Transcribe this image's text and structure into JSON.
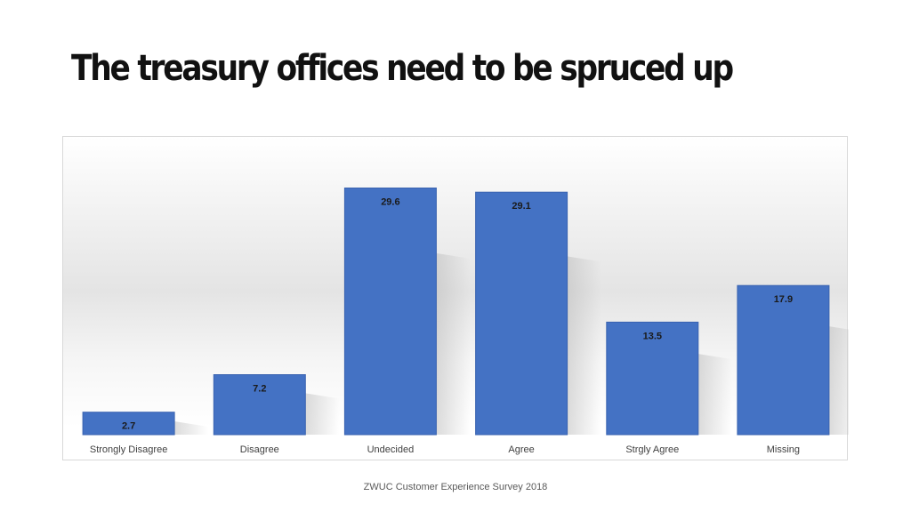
{
  "title": "The treasury offices need to be spruced up",
  "footer": "ZWUC Customer Experience Survey 2018",
  "chart_data": {
    "type": "bar",
    "categories": [
      "Strongly Disagree",
      "Disagree",
      "Undecided",
      "Agree",
      "Strgly Agree",
      "Missing"
    ],
    "values": [
      2.7,
      7.2,
      29.6,
      29.1,
      13.5,
      17.9
    ],
    "data_labels": [
      "2.7",
      "7.2",
      "29.6",
      "29.1",
      "13.5",
      "17.9"
    ],
    "ylim": [
      0,
      32
    ],
    "grid": false,
    "legend": "none",
    "colors": {
      "bar": "#4472c4",
      "bar_edge": "#3a63b0"
    }
  }
}
